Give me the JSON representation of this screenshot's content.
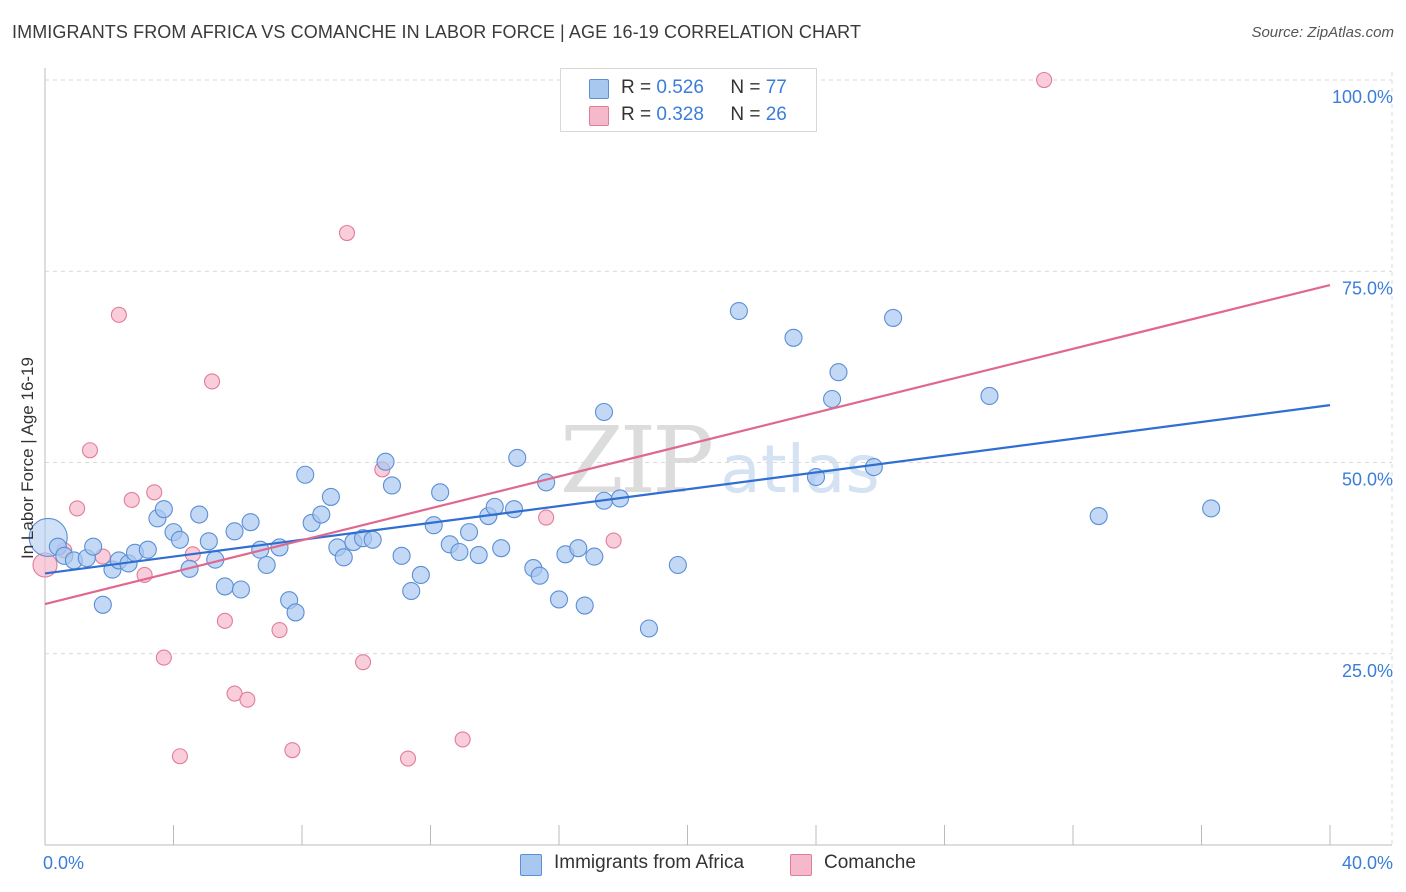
{
  "title": "IMMIGRANTS FROM AFRICA VS COMANCHE IN LABOR FORCE | AGE 16-19 CORRELATION CHART",
  "source": "Source: ZipAtlas.com",
  "watermark": {
    "zip": "ZIP",
    "atlas": "atlas"
  },
  "legend": {
    "rows": [
      {
        "r_label": "R = ",
        "r_value": "0.526",
        "n_label": "N = ",
        "n_value": "77"
      },
      {
        "r_label": "R = ",
        "r_value": "0.328",
        "n_label": "N = ",
        "n_value": "26"
      }
    ]
  },
  "chart_data": {
    "type": "scatter",
    "xlabel": "",
    "ylabel": "In Labor Force | Age 16-19",
    "xlim": [
      0,
      40
    ],
    "ylim": [
      0,
      100
    ],
    "x_tick_labels": [
      "0.0%",
      "40.0%"
    ],
    "y_tick_labels": [
      "25.0%",
      "50.0%",
      "75.0%",
      "100.0%"
    ],
    "y_ticks": [
      25,
      50,
      75,
      100
    ],
    "grid": true,
    "legend_position": "top-center",
    "colors": {
      "africa_fill": "#a9c8f0",
      "africa_stroke": "#5b8fd6",
      "africa_line": "#2f6fd1",
      "comanche_fill": "#f6b9cb",
      "comanche_stroke": "#e07c9c",
      "comanche_line": "#e0688f",
      "axis_label_blue": "#3b7dd8"
    },
    "series": [
      {
        "name": "Immigrants from Africa",
        "color": "#a9c8f0",
        "trendline": {
          "x": [
            0,
            40
          ],
          "y": [
            35.5,
            57.5
          ]
        },
        "points": [
          {
            "x": 0.1,
            "y": 40.2
          },
          {
            "x": 0.4,
            "y": 39.0
          },
          {
            "x": 0.6,
            "y": 37.8
          },
          {
            "x": 0.9,
            "y": 37.2
          },
          {
            "x": 1.3,
            "y": 37.5
          },
          {
            "x": 1.5,
            "y": 39.0
          },
          {
            "x": 1.8,
            "y": 31.4
          },
          {
            "x": 2.1,
            "y": 36.0
          },
          {
            "x": 2.3,
            "y": 37.2
          },
          {
            "x": 2.6,
            "y": 36.8
          },
          {
            "x": 2.8,
            "y": 38.2
          },
          {
            "x": 3.2,
            "y": 38.6
          },
          {
            "x": 3.5,
            "y": 42.7
          },
          {
            "x": 3.7,
            "y": 43.9
          },
          {
            "x": 4.0,
            "y": 40.9
          },
          {
            "x": 4.2,
            "y": 39.9
          },
          {
            "x": 4.5,
            "y": 36.1
          },
          {
            "x": 4.8,
            "y": 43.2
          },
          {
            "x": 5.1,
            "y": 39.7
          },
          {
            "x": 5.3,
            "y": 37.3
          },
          {
            "x": 5.6,
            "y": 33.8
          },
          {
            "x": 5.9,
            "y": 41.0
          },
          {
            "x": 6.1,
            "y": 33.4
          },
          {
            "x": 6.4,
            "y": 42.2
          },
          {
            "x": 6.7,
            "y": 38.6
          },
          {
            "x": 6.9,
            "y": 36.6
          },
          {
            "x": 7.3,
            "y": 38.9
          },
          {
            "x": 7.6,
            "y": 32.0
          },
          {
            "x": 7.8,
            "y": 30.4
          },
          {
            "x": 8.1,
            "y": 48.4
          },
          {
            "x": 8.3,
            "y": 42.1
          },
          {
            "x": 8.6,
            "y": 43.2
          },
          {
            "x": 8.9,
            "y": 45.5
          },
          {
            "x": 9.1,
            "y": 38.9
          },
          {
            "x": 9.3,
            "y": 37.6
          },
          {
            "x": 9.6,
            "y": 39.6
          },
          {
            "x": 9.9,
            "y": 40.1
          },
          {
            "x": 10.2,
            "y": 39.9
          },
          {
            "x": 10.6,
            "y": 50.1
          },
          {
            "x": 10.8,
            "y": 47.0
          },
          {
            "x": 11.1,
            "y": 37.8
          },
          {
            "x": 11.4,
            "y": 33.2
          },
          {
            "x": 11.7,
            "y": 35.3
          },
          {
            "x": 12.1,
            "y": 41.8
          },
          {
            "x": 12.3,
            "y": 46.1
          },
          {
            "x": 12.6,
            "y": 39.3
          },
          {
            "x": 12.9,
            "y": 38.3
          },
          {
            "x": 13.2,
            "y": 40.9
          },
          {
            "x": 13.5,
            "y": 37.9
          },
          {
            "x": 13.8,
            "y": 43.0
          },
          {
            "x": 14.0,
            "y": 44.2
          },
          {
            "x": 14.2,
            "y": 38.8
          },
          {
            "x": 14.6,
            "y": 43.9
          },
          {
            "x": 14.7,
            "y": 50.6
          },
          {
            "x": 15.2,
            "y": 36.2
          },
          {
            "x": 15.4,
            "y": 35.2
          },
          {
            "x": 15.6,
            "y": 47.4
          },
          {
            "x": 16.0,
            "y": 32.1
          },
          {
            "x": 16.2,
            "y": 38.0
          },
          {
            "x": 16.6,
            "y": 38.8
          },
          {
            "x": 16.8,
            "y": 31.3
          },
          {
            "x": 17.1,
            "y": 37.7
          },
          {
            "x": 17.4,
            "y": 56.6
          },
          {
            "x": 17.4,
            "y": 45.0
          },
          {
            "x": 17.9,
            "y": 45.3
          },
          {
            "x": 18.8,
            "y": 28.3
          },
          {
            "x": 19.7,
            "y": 36.6
          },
          {
            "x": 21.6,
            "y": 69.8
          },
          {
            "x": 23.3,
            "y": 66.3
          },
          {
            "x": 24.0,
            "y": 48.1
          },
          {
            "x": 24.5,
            "y": 58.3
          },
          {
            "x": 24.7,
            "y": 61.8
          },
          {
            "x": 25.8,
            "y": 49.4
          },
          {
            "x": 26.4,
            "y": 68.9
          },
          {
            "x": 29.4,
            "y": 58.7
          },
          {
            "x": 32.8,
            "y": 43.0
          },
          {
            "x": 36.3,
            "y": 44.0
          }
        ]
      },
      {
        "name": "Comanche",
        "color": "#f6b9cb",
        "trendline": {
          "x": [
            0,
            40
          ],
          "y": [
            31.5,
            73.2
          ]
        },
        "points": [
          {
            "x": 0.0,
            "y": 36.6
          },
          {
            "x": 0.6,
            "y": 38.5
          },
          {
            "x": 1.0,
            "y": 44.0
          },
          {
            "x": 1.4,
            "y": 51.6
          },
          {
            "x": 1.8,
            "y": 37.7
          },
          {
            "x": 2.3,
            "y": 69.3
          },
          {
            "x": 2.7,
            "y": 45.1
          },
          {
            "x": 3.1,
            "y": 35.3
          },
          {
            "x": 3.4,
            "y": 46.1
          },
          {
            "x": 3.7,
            "y": 24.5
          },
          {
            "x": 4.2,
            "y": 11.6
          },
          {
            "x": 4.6,
            "y": 38.0
          },
          {
            "x": 5.2,
            "y": 60.6
          },
          {
            "x": 5.6,
            "y": 29.3
          },
          {
            "x": 5.9,
            "y": 19.8
          },
          {
            "x": 6.3,
            "y": 19.0
          },
          {
            "x": 7.3,
            "y": 28.1
          },
          {
            "x": 7.7,
            "y": 12.4
          },
          {
            "x": 9.4,
            "y": 80.0
          },
          {
            "x": 9.9,
            "y": 23.9
          },
          {
            "x": 10.5,
            "y": 49.1
          },
          {
            "x": 11.3,
            "y": 11.3
          },
          {
            "x": 13.0,
            "y": 13.8
          },
          {
            "x": 15.6,
            "y": 42.8
          },
          {
            "x": 17.7,
            "y": 39.8
          },
          {
            "x": 31.1,
            "y": 100.0
          }
        ]
      }
    ]
  }
}
